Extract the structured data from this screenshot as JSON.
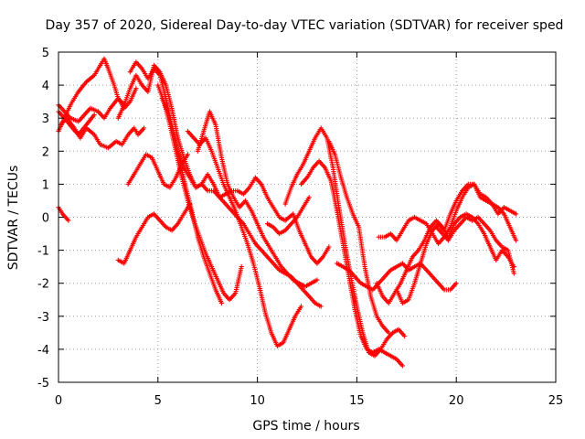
{
  "chart_data": {
    "type": "scatter",
    "title": "Day 357 of 2020, Sidereal Day-to-day VTEC variation (SDTVAR) for receiver sped",
    "xlabel": "GPS time / hours",
    "ylabel": "SDTVAR / TECUs",
    "xlim": [
      0,
      25
    ],
    "ylim": [
      -5,
      5
    ],
    "xticks": [
      0,
      5,
      10,
      15,
      20,
      25
    ],
    "yticks": [
      -5,
      -4,
      -3,
      -2,
      -1,
      0,
      1,
      2,
      3,
      4,
      5
    ],
    "grid": true,
    "marker": "plus",
    "color": "#ff0000",
    "series": [
      {
        "name": "trace-1",
        "x": [
          0.0,
          0.3,
          0.6,
          1.0,
          1.4,
          1.8,
          2.1,
          2.3,
          2.5,
          2.8,
          3.0,
          3.3,
          3.6,
          3.9
        ],
        "y": [
          2.6,
          3.0,
          3.4,
          3.8,
          4.1,
          4.3,
          4.6,
          4.8,
          4.5,
          4.0,
          3.6,
          3.3,
          3.5,
          3.9
        ]
      },
      {
        "name": "trace-2",
        "x": [
          0.0,
          0.3,
          0.6,
          1.0,
          1.3,
          1.6,
          2.0,
          2.3,
          2.6,
          3.0,
          3.3
        ],
        "y": [
          3.4,
          3.2,
          3.0,
          2.9,
          3.1,
          3.3,
          3.2,
          3.0,
          3.3,
          3.6,
          3.4
        ]
      },
      {
        "name": "trace-3",
        "x": [
          0.1,
          0.4,
          0.8,
          1.1,
          1.4,
          1.8,
          2.1,
          2.5,
          2.9,
          3.2,
          3.5,
          3.8,
          4.0,
          4.3
        ],
        "y": [
          2.8,
          3.0,
          2.7,
          2.4,
          2.7,
          2.5,
          2.2,
          2.1,
          2.3,
          2.2,
          2.5,
          2.7,
          2.5,
          2.7
        ]
      },
      {
        "name": "trace-4",
        "x": [
          0.0,
          0.3,
          0.7,
          1.0,
          1.4,
          1.8
        ],
        "y": [
          3.2,
          3.0,
          2.7,
          2.5,
          2.8,
          3.1
        ]
      },
      {
        "name": "trace-5",
        "x": [
          0.0,
          0.2,
          0.5
        ],
        "y": [
          0.3,
          0.1,
          -0.1
        ]
      },
      {
        "name": "trace-6",
        "x": [
          3.6,
          3.9,
          4.2,
          4.5,
          4.8,
          5.1,
          5.4,
          5.7,
          6.0,
          6.3,
          6.6,
          6.9,
          7.2,
          7.5,
          7.8,
          8.1,
          8.4,
          8.7,
          9.0,
          9.3,
          9.6,
          9.9,
          10.2,
          10.5,
          10.8,
          11.1,
          11.4,
          11.8,
          12.1,
          12.4,
          12.7,
          13.0,
          13.3,
          13.6
        ],
        "y": [
          4.4,
          4.7,
          4.5,
          4.2,
          4.5,
          4.3,
          3.6,
          2.8,
          2.0,
          1.5,
          1.2,
          0.9,
          1.0,
          0.8,
          0.8,
          0.6,
          0.7,
          0.8,
          0.8,
          0.7,
          0.9,
          1.2,
          1.0,
          0.6,
          0.3,
          0.0,
          -0.1,
          0.1,
          -0.4,
          -0.8,
          -1.2,
          -1.4,
          -1.2,
          -0.9
        ]
      },
      {
        "name": "trace-7",
        "x": [
          3.0,
          3.3,
          3.6,
          3.9,
          4.2,
          4.5,
          4.8,
          5.1,
          5.4,
          5.7,
          6.0,
          6.3,
          6.6,
          6.9,
          7.2,
          7.5,
          7.8,
          8.1,
          8.4,
          8.7,
          9.0,
          9.3,
          9.6,
          9.9,
          10.2,
          10.5,
          10.8,
          11.1,
          11.4,
          11.7,
          12.0,
          12.3,
          12.6,
          12.9,
          13.2
        ],
        "y": [
          3.0,
          3.4,
          3.9,
          4.3,
          4.0,
          3.8,
          4.6,
          4.4,
          4.0,
          3.3,
          2.4,
          1.8,
          1.3,
          0.9,
          1.0,
          1.3,
          1.0,
          0.6,
          0.4,
          0.2,
          0.0,
          -0.2,
          -0.5,
          -0.8,
          -1.0,
          -1.2,
          -1.4,
          -1.6,
          -1.7,
          -1.8,
          -2.0,
          -2.2,
          -2.4,
          -2.6,
          -2.7
        ]
      },
      {
        "name": "trace-8",
        "x": [
          5.2,
          5.5,
          5.8,
          6.1,
          6.4,
          6.7,
          7.0,
          7.3,
          7.6,
          7.9,
          8.2
        ],
        "y": [
          3.6,
          3.2,
          2.5,
          1.7,
          0.9,
          0.2,
          -0.6,
          -1.2,
          -1.7,
          -2.2,
          -2.6
        ]
      },
      {
        "name": "trace-9",
        "x": [
          5.0,
          5.3,
          5.6,
          5.9,
          6.2,
          6.5,
          6.8,
          7.1,
          7.4,
          7.7,
          8.0,
          8.3,
          8.6,
          8.9,
          9.2
        ],
        "y": [
          4.0,
          3.5,
          2.8,
          2.0,
          1.2,
          0.5,
          -0.1,
          -0.6,
          -1.1,
          -1.5,
          -1.9,
          -2.3,
          -2.5,
          -2.3,
          -1.5
        ]
      },
      {
        "name": "trace-10",
        "x": [
          6.5,
          6.8,
          7.1,
          7.4,
          7.7,
          8.0,
          8.3,
          8.6,
          8.9,
          9.2,
          9.5,
          9.8,
          10.1,
          10.4,
          10.7,
          11.0,
          11.3,
          11.6,
          11.9,
          12.2
        ],
        "y": [
          2.6,
          2.4,
          2.2,
          2.4,
          2.0,
          1.5,
          1.0,
          0.6,
          0.2,
          -0.3,
          -0.8,
          -1.4,
          -2.1,
          -2.9,
          -3.5,
          -3.9,
          -3.8,
          -3.4,
          -3.0,
          -2.7
        ]
      },
      {
        "name": "trace-11",
        "x": [
          7.0,
          7.3,
          7.6,
          7.9,
          8.2,
          8.5,
          8.8,
          9.1,
          9.4,
          9.7,
          10.0,
          10.3,
          10.6,
          10.9,
          11.2,
          11.5,
          11.8,
          12.1,
          12.4,
          12.7,
          13.0
        ],
        "y": [
          2.0,
          2.6,
          3.2,
          2.8,
          1.8,
          1.0,
          0.6,
          0.3,
          0.5,
          0.2,
          -0.2,
          -0.6,
          -0.9,
          -1.2,
          -1.5,
          -1.7,
          -1.9,
          -2.0,
          -2.1,
          -2.0,
          -1.9
        ]
      },
      {
        "name": "trace-12",
        "x": [
          3.0,
          3.3,
          3.6,
          3.9,
          4.2,
          4.5,
          4.8,
          5.1,
          5.4,
          5.7,
          6.0,
          6.3,
          6.6
        ],
        "y": [
          -1.3,
          -1.4,
          -1.0,
          -0.6,
          -0.3,
          0.0,
          0.1,
          -0.1,
          -0.3,
          -0.4,
          -0.2,
          0.1,
          0.4
        ]
      },
      {
        "name": "trace-13",
        "x": [
          3.5,
          3.8,
          4.1,
          4.4,
          4.7,
          5.0,
          5.3,
          5.6,
          5.9,
          6.2,
          6.5
        ],
        "y": [
          1.0,
          1.3,
          1.6,
          1.9,
          1.8,
          1.4,
          1.0,
          0.9,
          1.2,
          1.6,
          1.9
        ]
      },
      {
        "name": "trace-14",
        "x": [
          10.5,
          10.8,
          11.1,
          11.4,
          11.7,
          12.0,
          12.3,
          12.6
        ],
        "y": [
          -0.2,
          -0.3,
          -0.5,
          -0.4,
          -0.2,
          0.0,
          0.3,
          0.6
        ]
      },
      {
        "name": "trace-15",
        "x": [
          11.4,
          11.7,
          12.0,
          12.3,
          12.6,
          12.9,
          13.2,
          13.5,
          13.8,
          14.1,
          14.4,
          14.7,
          15.0,
          15.3,
          15.6,
          15.9,
          16.2,
          16.5,
          16.8,
          17.1,
          17.4
        ],
        "y": [
          0.4,
          0.9,
          1.3,
          1.6,
          2.0,
          2.4,
          2.7,
          2.4,
          1.5,
          0.3,
          -0.8,
          -1.8,
          -2.7,
          -3.5,
          -4.1,
          -4.2,
          -4.0,
          -3.7,
          -3.5,
          -3.4,
          -3.6
        ]
      },
      {
        "name": "trace-16",
        "x": [
          12.2,
          12.5,
          12.8,
          13.1,
          13.4,
          13.7,
          14.0,
          14.3,
          14.6,
          14.9,
          15.2,
          15.5,
          15.8,
          16.1,
          16.4,
          16.7,
          17.0,
          17.3
        ],
        "y": [
          1.0,
          1.2,
          1.5,
          1.7,
          1.5,
          1.1,
          0.2,
          -0.8,
          -1.8,
          -2.8,
          -3.6,
          -4.0,
          -4.1,
          -4.0,
          -4.1,
          -4.2,
          -4.3,
          -4.5
        ]
      },
      {
        "name": "trace-17",
        "x": [
          13.6,
          13.9,
          14.2,
          14.5,
          14.8,
          15.1,
          15.4,
          15.7,
          16.0,
          16.3,
          16.6
        ],
        "y": [
          2.3,
          1.9,
          1.2,
          0.6,
          0.1,
          -0.3,
          -1.5,
          -2.4,
          -3.0,
          -3.3,
          -3.5
        ]
      },
      {
        "name": "trace-18",
        "x": [
          14.0,
          14.3,
          14.6,
          14.9,
          15.2,
          15.5,
          15.8,
          16.1,
          16.4,
          16.7,
          17.0,
          17.3,
          17.6,
          17.9,
          18.2,
          18.5,
          18.8,
          19.1,
          19.4,
          19.7,
          20.0
        ],
        "y": [
          -1.4,
          -1.5,
          -1.6,
          -1.8,
          -2.0,
          -2.1,
          -2.2,
          -2.0,
          -1.8,
          -1.6,
          -1.5,
          -1.4,
          -1.6,
          -1.5,
          -1.4,
          -1.6,
          -1.8,
          -2.0,
          -2.2,
          -2.2,
          -2.0
        ]
      },
      {
        "name": "trace-19",
        "x": [
          16.0,
          16.3,
          16.6,
          16.9,
          17.2,
          17.5,
          17.8,
          18.1,
          18.4,
          18.7,
          19.0,
          19.3,
          19.6,
          19.9,
          20.2,
          20.5,
          20.8,
          21.1,
          21.4,
          21.7,
          22.0,
          22.3,
          22.6,
          22.9
        ],
        "y": [
          -2.0,
          -2.4,
          -2.6,
          -2.3,
          -2.0,
          -1.6,
          -1.2,
          -1.0,
          -0.7,
          -0.3,
          -0.1,
          -0.3,
          -0.6,
          -0.2,
          0.0,
          0.1,
          0.0,
          -0.2,
          -0.5,
          -0.9,
          -1.3,
          -1.0,
          -1.2,
          -1.5
        ]
      },
      {
        "name": "trace-20",
        "x": [
          17.0,
          17.3,
          17.6,
          17.9,
          18.2,
          18.5,
          18.8,
          19.1,
          19.4,
          19.7,
          20.0,
          20.3,
          20.6,
          20.9,
          21.2,
          21.5,
          21.8,
          22.1,
          22.4,
          22.7,
          23.0
        ],
        "y": [
          -2.2,
          -2.6,
          -2.5,
          -2.0,
          -1.4,
          -0.8,
          -0.4,
          -0.2,
          -0.4,
          0.1,
          0.5,
          0.8,
          1.0,
          1.0,
          0.6,
          0.5,
          0.4,
          0.3,
          0.1,
          -0.3,
          -0.7
        ]
      },
      {
        "name": "trace-21",
        "x": [
          16.1,
          16.4,
          16.7,
          17.0,
          17.3,
          17.6,
          17.9,
          18.2,
          18.5,
          18.8,
          19.1,
          19.4,
          19.7,
          20.0,
          20.3,
          20.6,
          20.9,
          21.2,
          21.5,
          21.8,
          22.1,
          22.4,
          22.7,
          23.0
        ],
        "y": [
          -0.6,
          -0.6,
          -0.5,
          -0.7,
          -0.4,
          -0.1,
          0.0,
          -0.1,
          -0.2,
          -0.5,
          -0.8,
          -0.6,
          -0.3,
          0.2,
          0.6,
          0.9,
          1.0,
          0.7,
          0.6,
          0.4,
          0.1,
          0.3,
          0.2,
          0.1
        ]
      },
      {
        "name": "trace-22",
        "x": [
          19.0,
          19.3,
          19.6,
          19.9,
          20.2,
          20.5,
          20.8,
          21.1,
          21.4,
          21.7,
          22.0,
          22.3,
          22.6,
          22.9
        ],
        "y": [
          -0.3,
          -0.5,
          -0.7,
          -0.4,
          -0.2,
          0.0,
          -0.1,
          0.0,
          -0.2,
          -0.4,
          -0.7,
          -0.9,
          -1.0,
          -1.7
        ]
      }
    ]
  }
}
